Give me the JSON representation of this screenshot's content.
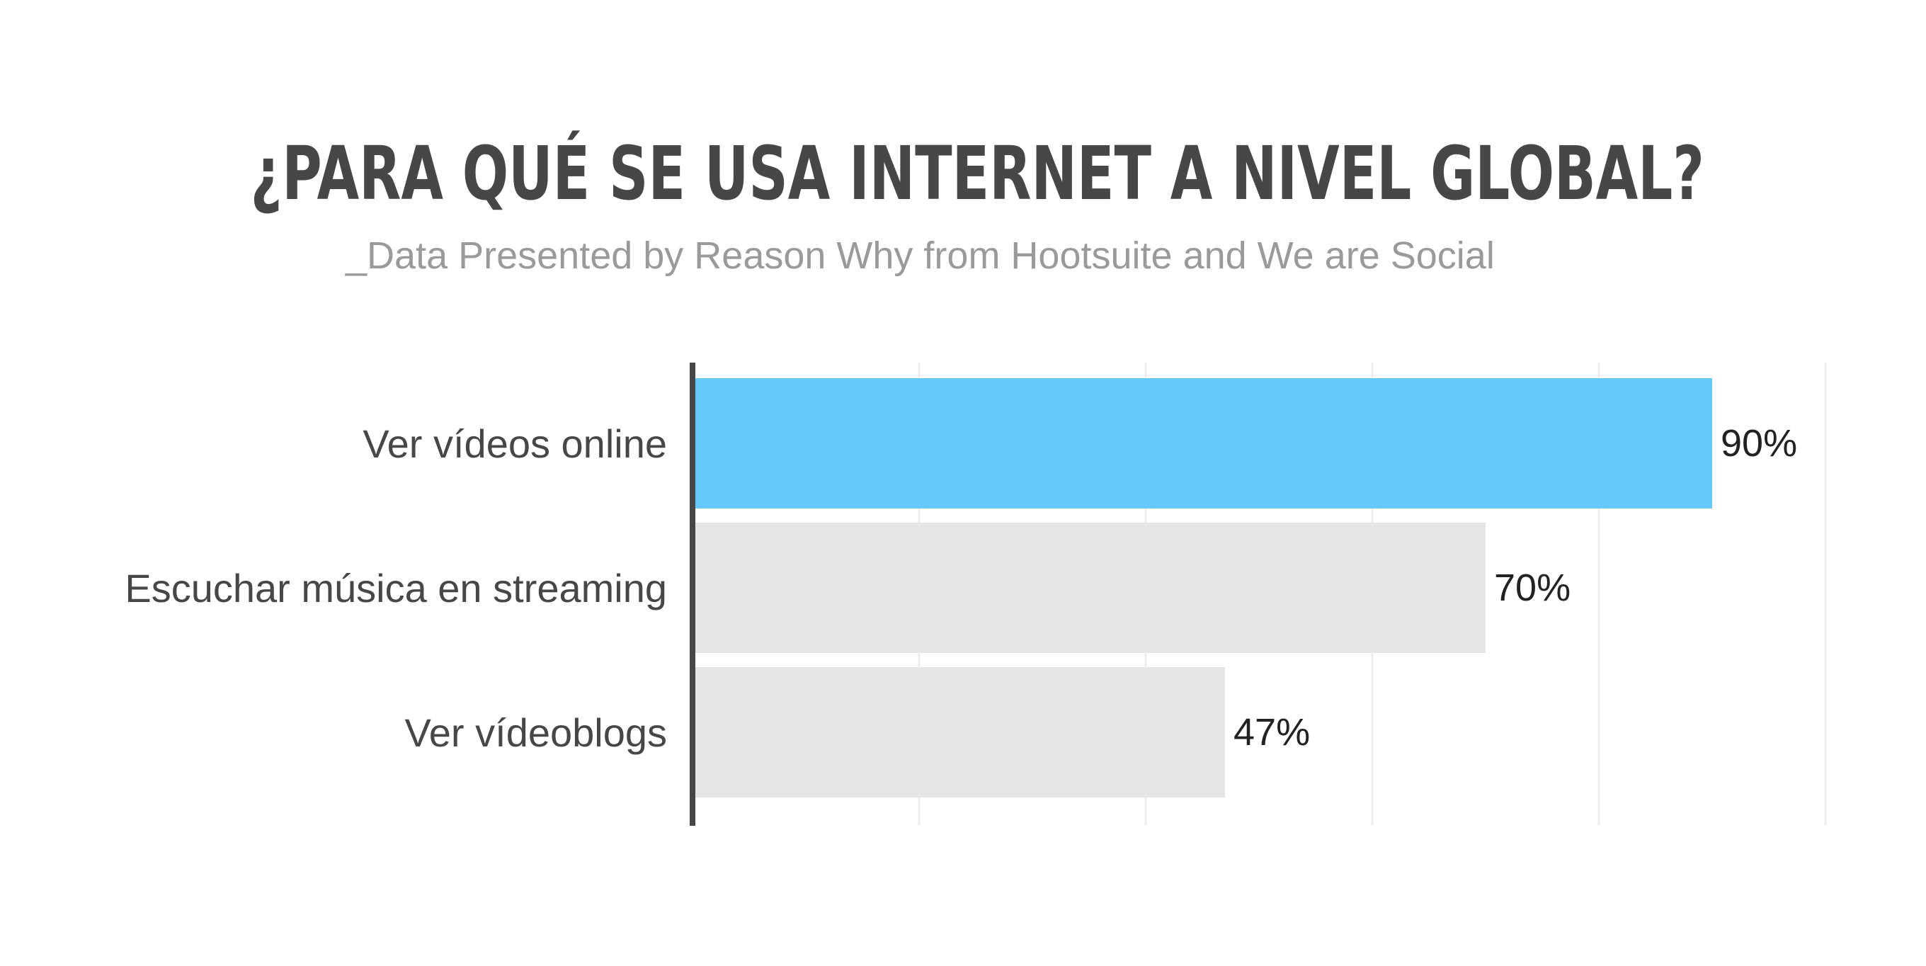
{
  "title": "¿PARA QUÉ SE USA INTERNET A NIVEL GLOBAL?",
  "subtitle": "_Data Presented by Reason Why from Hootsuite and We are Social",
  "colors": {
    "highlight": "#66c9fc",
    "bar": "#e5e5e5",
    "axis": "#474747",
    "grid": "#eeeeee"
  },
  "chart_data": {
    "type": "bar",
    "orientation": "horizontal",
    "categories": [
      "Ver vídeos online",
      "Escuchar música en streaming",
      "Ver vídeoblogs"
    ],
    "values": [
      90,
      70,
      47
    ],
    "value_labels": [
      "90%",
      "70%",
      "47%"
    ],
    "unit": "%",
    "highlight_index": 0,
    "xlim": [
      0,
      100
    ],
    "grid": true,
    "legend": "none"
  }
}
